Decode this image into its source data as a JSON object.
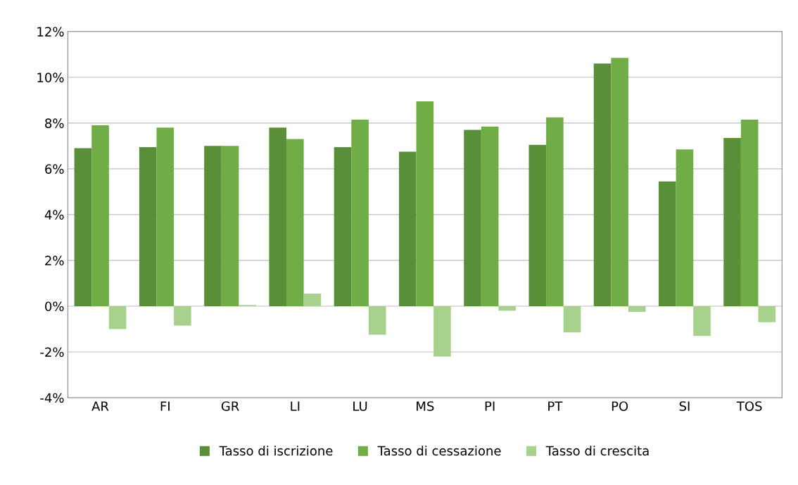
{
  "chart_data": {
    "type": "bar",
    "categories": [
      "AR",
      "FI",
      "GR",
      "LI",
      "LU",
      "MS",
      "PI",
      "PT",
      "PO",
      "SI",
      "TOS"
    ],
    "series": [
      {
        "name": "Tasso di iscrizione",
        "color": "#5a8f3a",
        "values": [
          6.9,
          6.95,
          7.0,
          7.8,
          6.95,
          6.75,
          7.7,
          7.05,
          10.6,
          5.45,
          7.35
        ]
      },
      {
        "name": "Tasso di cessazione",
        "color": "#70ad47",
        "values": [
          7.9,
          7.8,
          7.0,
          7.3,
          8.15,
          8.95,
          7.85,
          8.25,
          10.85,
          6.85,
          8.15
        ]
      },
      {
        "name": "Tasso di crescita",
        "color": "#a9d18e",
        "values": [
          -1.0,
          -0.85,
          0.05,
          0.55,
          -1.25,
          -2.2,
          -0.2,
          -1.15,
          -0.25,
          -1.3,
          -0.7
        ]
      }
    ],
    "ylim": [
      -4,
      12
    ],
    "yticks": [
      {
        "value": -4,
        "label": "-4%"
      },
      {
        "value": -2,
        "label": "-2%"
      },
      {
        "value": 0,
        "label": "0%"
      },
      {
        "value": 2,
        "label": "2%"
      },
      {
        "value": 4,
        "label": "4%"
      },
      {
        "value": 6,
        "label": "6%"
      },
      {
        "value": 8,
        "label": "8%"
      },
      {
        "value": 10,
        "label": "10%"
      },
      {
        "value": 12,
        "label": "12%"
      }
    ],
    "grid": "y",
    "legend": "bottom"
  }
}
